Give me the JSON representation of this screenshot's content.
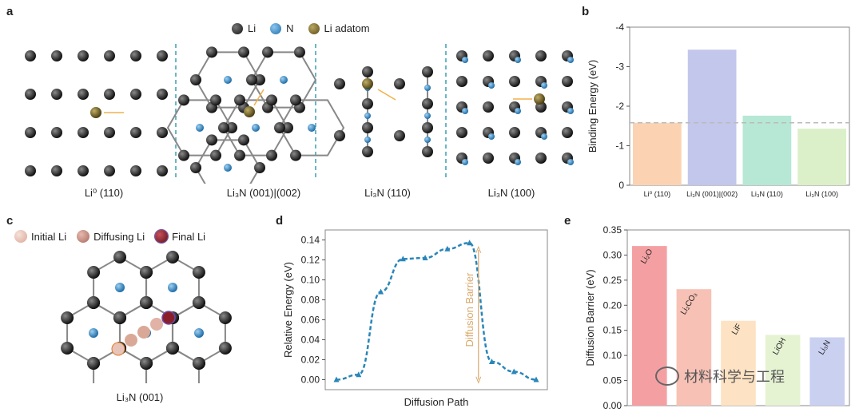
{
  "panels": {
    "a": "a",
    "b": "b",
    "c": "c",
    "d": "d",
    "e": "e"
  },
  "legend_a": [
    {
      "label": "Li",
      "color": "#2b2b2b"
    },
    {
      "label": "N",
      "color": "#3d8fd1"
    },
    {
      "label": "Li adatom",
      "color": "#7a6a2a"
    }
  ],
  "structures_a": [
    "Li⁰ (110)",
    "Li₃N (001)|(002)",
    "Li₃N (110)",
    "Li₃N (100)"
  ],
  "legend_c": [
    {
      "label": "Initial Li",
      "color": "#e8c4b8"
    },
    {
      "label": "Diffusing Li",
      "color": "#c98e82"
    },
    {
      "label": "Final Li",
      "color": "#8a1f2a"
    }
  ],
  "structure_c": "Li₃N (001)",
  "watermark": "材料科学与工程",
  "chart_data": [
    {
      "id": "b",
      "type": "bar",
      "ylabel": "Binding Energy (eV)",
      "categories": [
        "Li⁰ (110)",
        "Li₃N (001)|(002)",
        "Li₃N (110)",
        "Li₃N (100)"
      ],
      "values": [
        -1.58,
        -3.43,
        -1.76,
        -1.43
      ],
      "colors": [
        "#fbd3b3",
        "#c3c7ec",
        "#b6e8d5",
        "#dbefc8"
      ],
      "yticks": [
        "0",
        "-1",
        "-2",
        "-3",
        "-4"
      ],
      "ylim": [
        0,
        -4
      ],
      "reference_line": -1.58
    },
    {
      "id": "d",
      "type": "line",
      "xlabel": "Diffusion Path",
      "ylabel": "Relative Energy (eV)",
      "x": [
        0,
        1,
        2,
        3,
        4,
        5,
        6,
        7,
        8,
        9
      ],
      "values": [
        0.0,
        0.005,
        0.088,
        0.121,
        0.122,
        0.131,
        0.137,
        0.018,
        0.008,
        0.0
      ],
      "yticks": [
        "0.00",
        "0.02",
        "0.04",
        "0.06",
        "0.08",
        "0.10",
        "0.12",
        "0.14"
      ],
      "ylim": [
        -0.01,
        0.15
      ],
      "annotation": "Diffusion Barrier",
      "color": "#2a86b8"
    },
    {
      "id": "e",
      "type": "bar",
      "ylabel": "Diffusion Barrier (eV)",
      "categories": [
        "Li₂O",
        "Li₂CO₃",
        "LiF",
        "LiOH",
        "Li₃N"
      ],
      "values": [
        0.318,
        0.232,
        0.169,
        0.141,
        0.136
      ],
      "colors": [
        "#f4a0a3",
        "#f7c1b5",
        "#fde2c3",
        "#e5f3d3",
        "#c9d0f0"
      ],
      "yticks": [
        "0.00",
        "0.05",
        "0.10",
        "0.15",
        "0.20",
        "0.25",
        "0.30",
        "0.35"
      ],
      "ylim": [
        0,
        0.35
      ]
    }
  ]
}
